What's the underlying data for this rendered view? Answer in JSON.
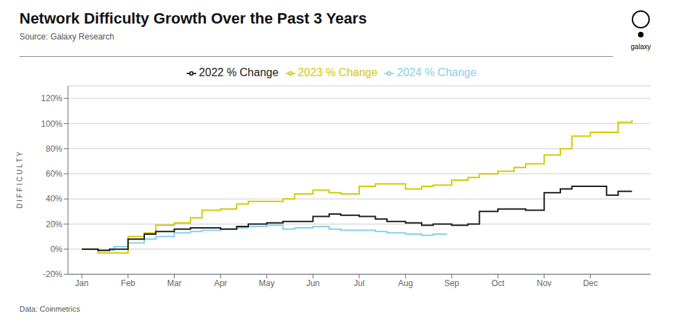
{
  "chart_data": {
    "type": "line",
    "line_style": "step",
    "title": "Network Difficulty Growth Over the Past 3 Years",
    "subtitle": "Source: Galaxy Research",
    "annotations": [
      "Data: Coinmetrics",
      "galaxy"
    ],
    "ylabel": "D I F F I C U L T Y",
    "xlim": [
      -0.3,
      12.3
    ],
    "xticks": [
      {
        "value": 0,
        "label": "Jan"
      },
      {
        "value": 1,
        "label": "Feb"
      },
      {
        "value": 2,
        "label": "Mar"
      },
      {
        "value": 3,
        "label": "Apr"
      },
      {
        "value": 4,
        "label": "May"
      },
      {
        "value": 5,
        "label": "Jun"
      },
      {
        "value": 6,
        "label": "Jul"
      },
      {
        "value": 7,
        "label": "Aug"
      },
      {
        "value": 8,
        "label": "Sep"
      },
      {
        "value": 9,
        "label": "Oct"
      },
      {
        "value": 10,
        "label": "Nov"
      },
      {
        "value": 11,
        "label": "Dec"
      }
    ],
    "ylim": [
      -20,
      130
    ],
    "yticks": [
      {
        "value": -20,
        "label": "-20%"
      },
      {
        "value": 0,
        "label": "0%"
      },
      {
        "value": 20,
        "label": "20%"
      },
      {
        "value": 40,
        "label": "40%"
      },
      {
        "value": 60,
        "label": "60%"
      },
      {
        "value": 80,
        "label": "80%"
      },
      {
        "value": 100,
        "label": "100%"
      },
      {
        "value": 120,
        "label": "120%"
      }
    ],
    "grid": true,
    "legend": "top",
    "series": [
      {
        "name": "2024 % Change",
        "color": "#87CEEB",
        "x": [
          0,
          0.35,
          0.5,
          0.7,
          1.0,
          1.35,
          1.6,
          2.0,
          2.35,
          2.6,
          3.0,
          3.35,
          3.6,
          4.0,
          4.35,
          4.6,
          5.0,
          5.35,
          5.6,
          6.0,
          6.35,
          6.6,
          7.0,
          7.35,
          7.6,
          7.9
        ],
        "values": [
          0,
          -1,
          -1,
          2,
          5,
          8,
          10,
          13,
          14,
          15,
          16,
          17,
          18,
          19,
          16,
          17,
          18,
          16,
          15,
          15,
          14,
          13,
          12,
          11,
          12,
          12
        ]
      },
      {
        "name": "2023 % Change",
        "color": "#d4c800",
        "x": [
          0,
          0.35,
          0.6,
          1.0,
          1.35,
          1.6,
          2.0,
          2.35,
          2.6,
          3.0,
          3.35,
          3.6,
          4.0,
          4.35,
          4.6,
          5.0,
          5.35,
          5.6,
          6.0,
          6.35,
          6.6,
          7.0,
          7.35,
          7.6,
          8.0,
          8.35,
          8.6,
          9.0,
          9.35,
          9.6,
          10.0,
          10.35,
          10.6,
          11.0,
          11.35,
          11.6,
          11.9
        ],
        "values": [
          0,
          -3,
          -3,
          10,
          13,
          19,
          21,
          25,
          31,
          32,
          36,
          38,
          38,
          40,
          44,
          47,
          45,
          44,
          50,
          52,
          52,
          48,
          50,
          51,
          55,
          57,
          60,
          62,
          65,
          68,
          75,
          80,
          90,
          93,
          93,
          101,
          103
        ]
      },
      {
        "name": "2022 % Change",
        "color": "#1a1a1a",
        "x": [
          0,
          0.35,
          0.6,
          1.0,
          1.35,
          1.6,
          2.0,
          2.35,
          2.6,
          3.0,
          3.35,
          3.6,
          4.0,
          4.35,
          4.6,
          5.0,
          5.35,
          5.6,
          6.0,
          6.35,
          6.6,
          7.0,
          7.35,
          7.6,
          8.0,
          8.35,
          8.6,
          9.0,
          9.35,
          9.6,
          10.0,
          10.35,
          10.6,
          11.0,
          11.35,
          11.6,
          11.9
        ],
        "values": [
          0,
          -1,
          0,
          8,
          12,
          14,
          16,
          17,
          17,
          16,
          18,
          20,
          21,
          22,
          22,
          26,
          28,
          27,
          26,
          24,
          22,
          21,
          19,
          20,
          19,
          20,
          30,
          32,
          32,
          31,
          45,
          48,
          50,
          50,
          43,
          46,
          46
        ]
      }
    ]
  }
}
